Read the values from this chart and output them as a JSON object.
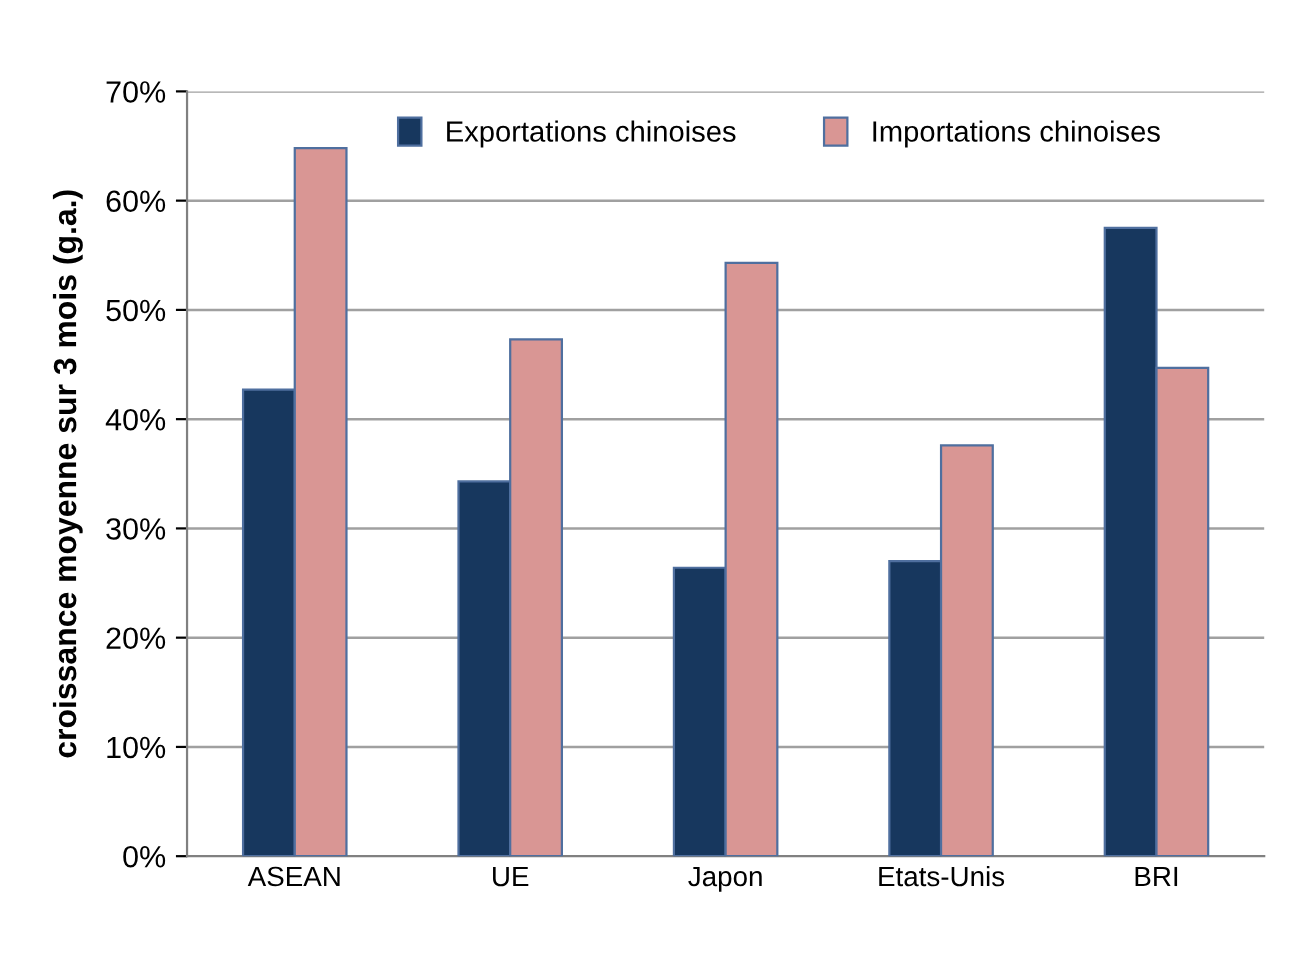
{
  "chart_data": {
    "type": "bar",
    "ylabel": "croissance moyenne sur 3 mois (g.a.)",
    "categories": [
      "ASEAN",
      "UE",
      "Japon",
      "Etats-Unis",
      "BRI"
    ],
    "series": [
      {
        "name": "Exportations chinoises",
        "color": "#17375e",
        "values": [
          42.7,
          34.3,
          26.4,
          27.0,
          57.5
        ]
      },
      {
        "name": "Importations chinoises",
        "color": "#d99694",
        "values": [
          64.8,
          47.3,
          54.3,
          37.6,
          44.7
        ]
      }
    ],
    "ylim": [
      0,
      70
    ],
    "yticks": [
      {
        "value": 0,
        "label": "0%"
      },
      {
        "value": 10,
        "label": "10%"
      },
      {
        "value": 20,
        "label": "20%"
      },
      {
        "value": 30,
        "label": "30%"
      },
      {
        "value": 40,
        "label": "40%"
      },
      {
        "value": 50,
        "label": "50%"
      },
      {
        "value": 60,
        "label": "60%"
      },
      {
        "value": 70,
        "label": "70%"
      }
    ],
    "grid": "y",
    "legend": "top"
  }
}
